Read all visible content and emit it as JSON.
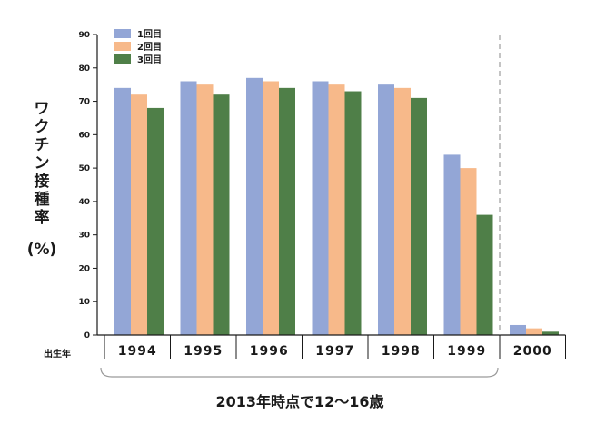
{
  "chart_data": {
    "type": "bar",
    "categories": [
      "1994",
      "1995",
      "1996",
      "1997",
      "1998",
      "1999",
      "2000"
    ],
    "series": [
      {
        "name": "1回目",
        "color": "#93a6d6",
        "values": [
          74,
          76,
          77,
          76,
          75,
          54,
          3
        ]
      },
      {
        "name": "2回目",
        "color": "#f7b98a",
        "values": [
          72,
          75,
          76,
          75,
          74,
          50,
          2
        ]
      },
      {
        "name": "3回目",
        "color": "#4f7f48",
        "values": [
          68,
          72,
          74,
          73,
          71,
          36,
          1
        ]
      }
    ],
    "ylim": [
      0,
      90
    ],
    "yticks": [
      0,
      10,
      20,
      30,
      40,
      50,
      60,
      70,
      80,
      90
    ],
    "ylabel_chars": [
      "ワ",
      "ク",
      "チ",
      "ン",
      "接",
      "種",
      "率"
    ],
    "ylabel_unit": "(%)",
    "x_row_label": "出生年",
    "bracket_caption": "2013年時点で12〜16歳",
    "legend_position": "top-left",
    "grid": false,
    "divider_before_category": "2000"
  }
}
